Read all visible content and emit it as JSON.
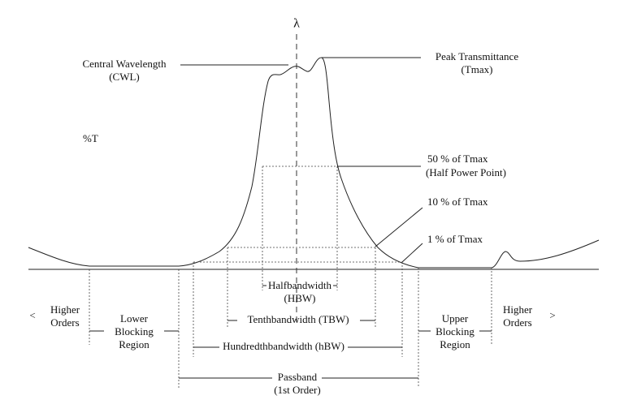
{
  "labels": {
    "lambda": "λ",
    "cwl": [
      "Central Wavelength",
      "(CWL)"
    ],
    "peak": [
      "Peak Transmittance",
      "(Tmax)"
    ],
    "y_axis": "%T",
    "half_power": [
      "50 % of Tmax",
      "(Half Power Point)"
    ],
    "tenth": "10 % of Tmax",
    "hundredth": "1 % of Tmax",
    "hbw": [
      "Halfbandwidth",
      "(HBW)"
    ],
    "tbw": "Tenthbandwidth (TBW)",
    "hundredth_bw": "Hundredthbandwidth (hBW)",
    "passband": [
      "Passband",
      "(1st Order)"
    ],
    "left_arrow": "<",
    "higher_orders_left": [
      "Higher",
      "Orders"
    ],
    "lower_blocking": [
      "Lower",
      "Blocking",
      "Region"
    ],
    "upper_blocking": [
      "Upper",
      "Blocking",
      "Region"
    ],
    "higher_orders_right": [
      "Higher",
      "Orders"
    ],
    "right_arrow": ">"
  }
}
